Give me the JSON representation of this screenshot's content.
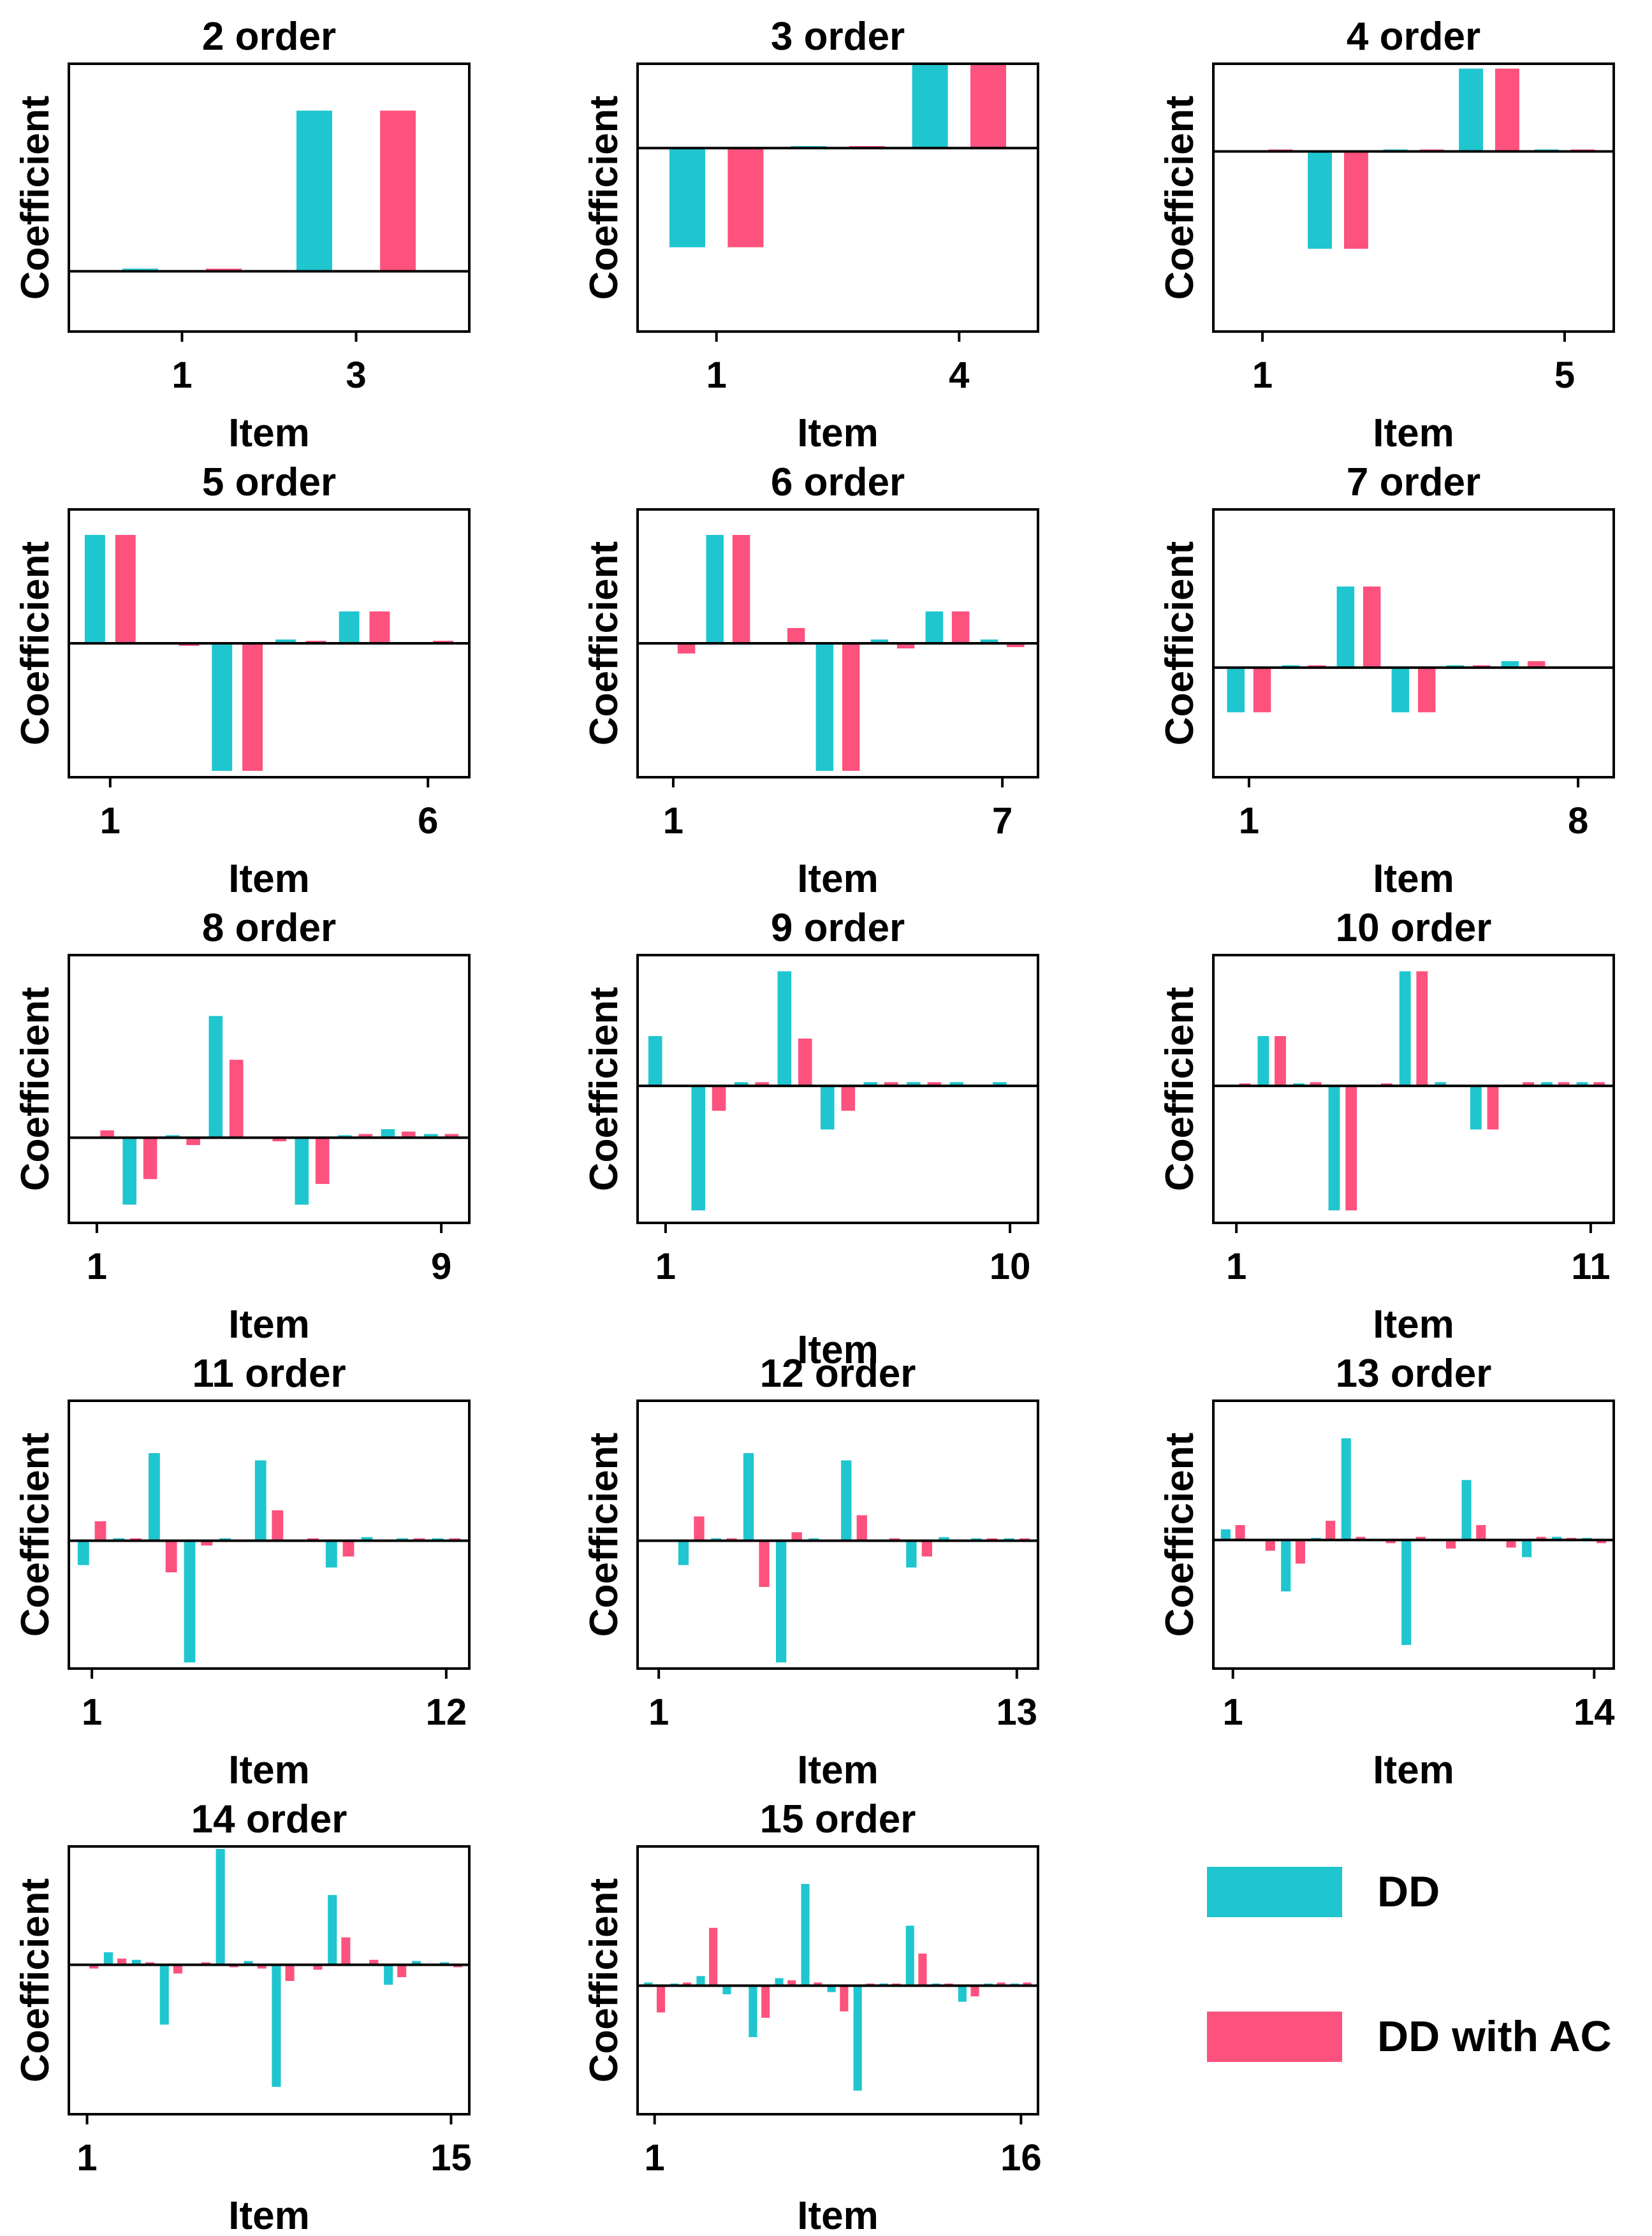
{
  "colors": {
    "dd": "#1fc6cf",
    "ac": "#fd527e",
    "axis": "#000000"
  },
  "legend": {
    "dd_label": "DD",
    "ac_label": "DD with AC"
  },
  "chart_data": [
    {
      "type": "bar",
      "title": "2 order",
      "xlabel": "Item",
      "ylabel": "Coefficient",
      "x_ticks": [
        "1",
        "3"
      ],
      "ylim": [
        -0.45,
        1.55
      ],
      "series": [
        {
          "name": "DD",
          "values": [
            0.02,
            1.2
          ]
        },
        {
          "name": "DD with AC",
          "values": [
            0.02,
            1.2
          ]
        }
      ]
    },
    {
      "type": "bar",
      "title": "3 order",
      "xlabel": "Item",
      "ylabel": "Coefficient",
      "x_ticks": [
        "1",
        "4"
      ],
      "ylim": [
        -1.85,
        0.85
      ],
      "series": [
        {
          "name": "DD",
          "values": [
            -1.0,
            0.02,
            0.85
          ]
        },
        {
          "name": "DD with AC",
          "values": [
            -1.0,
            0.02,
            0.85
          ]
        }
      ]
    },
    {
      "type": "bar",
      "title": "4 order",
      "xlabel": "Item",
      "ylabel": "Coefficient",
      "x_ticks": [
        "1",
        "5"
      ],
      "ylim": [
        -1.85,
        0.9
      ],
      "series": [
        {
          "name": "DD",
          "values": [
            0,
            -1.0,
            0.02,
            0.85,
            0.02
          ]
        },
        {
          "name": "DD with AC",
          "values": [
            0.02,
            -1.0,
            0.02,
            0.85,
            0.02
          ]
        }
      ]
    },
    {
      "type": "bar",
      "title": "5 order",
      "xlabel": "Item",
      "ylabel": "Coefficient",
      "x_ticks": [
        "1",
        "6"
      ],
      "ylim": [
        -1.05,
        1.05
      ],
      "series": [
        {
          "name": "DD",
          "values": [
            0.85,
            0,
            -1.0,
            0.03,
            0.25,
            0
          ]
        },
        {
          "name": "DD with AC",
          "values": [
            0.85,
            -0.02,
            -1.0,
            0.02,
            0.25,
            0.02
          ]
        }
      ]
    },
    {
      "type": "bar",
      "title": "6 order",
      "xlabel": "Item",
      "ylabel": "Coefficient",
      "x_ticks": [
        "1",
        "7"
      ],
      "ylim": [
        -1.05,
        1.05
      ],
      "series": [
        {
          "name": "DD",
          "values": [
            0,
            0.85,
            0,
            -1.0,
            0.03,
            0.25,
            0.03
          ]
        },
        {
          "name": "DD with AC",
          "values": [
            -0.08,
            0.85,
            0.12,
            -1.0,
            -0.04,
            0.25,
            -0.03
          ]
        }
      ]
    },
    {
      "type": "bar",
      "title": "7 order",
      "xlabel": "Item",
      "ylabel": "Coefficient",
      "x_ticks": [
        "1",
        "8"
      ],
      "ylim": [
        -1.35,
        1.95
      ],
      "series": [
        {
          "name": "DD",
          "values": [
            -0.55,
            0.03,
            1.0,
            -0.55,
            0.03,
            0.08,
            0
          ]
        },
        {
          "name": "DD with AC",
          "values": [
            -0.55,
            0.03,
            1.0,
            -0.55,
            0.03,
            0.08,
            0
          ]
        }
      ]
    },
    {
      "type": "bar",
      "title": "8 order",
      "xlabel": "Item",
      "ylabel": "Coefficient",
      "x_ticks": [
        "1",
        "9"
      ],
      "ylim": [
        -0.7,
        1.5
      ],
      "series": [
        {
          "name": "DD",
          "values": [
            0,
            -0.55,
            0.02,
            1.0,
            0,
            -0.55,
            0.02,
            0.07,
            0.03
          ]
        },
        {
          "name": "DD with AC",
          "values": [
            0.06,
            -0.34,
            -0.06,
            0.64,
            -0.03,
            -0.38,
            0.03,
            0.05,
            0.03
          ]
        }
      ]
    },
    {
      "type": "bar",
      "title": "9 order",
      "xlabel": "Item",
      "ylabel": "Coefficient",
      "x_ticks": [
        "1",
        "10"
      ],
      "ylim": [
        -1.1,
        1.05
      ],
      "series": [
        {
          "name": "DD",
          "values": [
            0.4,
            -1.0,
            0.03,
            0.92,
            -0.35,
            0.03,
            0.03,
            0.03,
            0.03
          ]
        },
        {
          "name": "DD with AC",
          "values": [
            0,
            -0.2,
            0.03,
            0.38,
            -0.2,
            0.03,
            0.03,
            0,
            0
          ]
        }
      ]
    },
    {
      "type": "bar",
      "title": "10 order",
      "xlabel": "Item",
      "ylabel": "Coefficient",
      "x_ticks": [
        "1",
        "11"
      ],
      "ylim": [
        -1.1,
        1.05
      ],
      "series": [
        {
          "name": "DD",
          "values": [
            0,
            0.4,
            0.02,
            -1.0,
            0,
            0.92,
            0.03,
            -0.35,
            0,
            0.03,
            0.03
          ]
        },
        {
          "name": "DD with AC",
          "values": [
            0.02,
            0.4,
            0.03,
            -1.0,
            0.02,
            0.92,
            0,
            -0.35,
            0.03,
            0.03,
            0.03
          ]
        }
      ]
    },
    {
      "type": "bar",
      "title": "11 order",
      "xlabel": "Item",
      "ylabel": "Coefficient",
      "x_ticks": [
        "1",
        "12"
      ],
      "ylim": [
        -1.05,
        1.15
      ],
      "series": [
        {
          "name": "DD",
          "values": [
            -0.2,
            0.02,
            0.72,
            -1.0,
            0.02,
            0.66,
            0,
            -0.22,
            0.03,
            0.02,
            0.02
          ]
        },
        {
          "name": "DD with AC",
          "values": [
            0.16,
            0.02,
            -0.26,
            -0.04,
            0,
            0.25,
            0.02,
            -0.13,
            0,
            0.02,
            0.02
          ]
        }
      ]
    },
    {
      "type": "bar",
      "title": "12 order",
      "xlabel": "Item",
      "ylabel": "Coefficient",
      "x_ticks": [
        "1",
        "13"
      ],
      "ylim": [
        -1.05,
        1.15
      ],
      "series": [
        {
          "name": "DD",
          "values": [
            0,
            -0.2,
            0.02,
            0.72,
            -1.0,
            0.02,
            0.66,
            0,
            -0.22,
            0.03,
            0.02,
            0.02
          ]
        },
        {
          "name": "DD with AC",
          "values": [
            0,
            0.2,
            0.02,
            -0.38,
            0.07,
            0,
            0.21,
            0.02,
            -0.13,
            0,
            0.02,
            0.02
          ]
        }
      ]
    },
    {
      "type": "bar",
      "title": "13 order",
      "xlabel": "Item",
      "ylabel": "Coefficient",
      "x_ticks": [
        "1",
        "14"
      ],
      "ylim": [
        -1.2,
        1.3
      ],
      "series": [
        {
          "name": "DD",
          "values": [
            0.1,
            0,
            -0.48,
            0.02,
            0.95,
            0,
            -0.98,
            0,
            0.56,
            0,
            -0.16,
            0.03,
            0.02
          ]
        },
        {
          "name": "DD with AC",
          "values": [
            0.14,
            -0.1,
            -0.22,
            0.18,
            0.03,
            -0.03,
            0.03,
            -0.08,
            0.14,
            -0.07,
            0.03,
            0.02,
            -0.03
          ]
        }
      ]
    },
    {
      "type": "bar",
      "title": "14 order",
      "xlabel": "Item",
      "ylabel": "Coefficient",
      "x_ticks": [
        "1",
        "15"
      ],
      "ylim": [
        -1.2,
        0.95
      ],
      "series": [
        {
          "name": "DD",
          "values": [
            0,
            0.1,
            0.04,
            -0.48,
            0,
            0.93,
            0.03,
            -0.98,
            0,
            0.56,
            0,
            -0.16,
            0.03,
            0.02
          ]
        },
        {
          "name": "DD with AC",
          "values": [
            -0.03,
            0.05,
            0.02,
            -0.07,
            0.02,
            -0.02,
            -0.03,
            -0.13,
            -0.04,
            0.22,
            0.04,
            -0.1,
            0,
            -0.02
          ]
        }
      ]
    },
    {
      "type": "bar",
      "title": "15 order",
      "xlabel": "Item",
      "ylabel": "Coefficient",
      "x_ticks": [
        "1",
        "16"
      ],
      "ylim": [
        -1.2,
        1.3
      ],
      "series": [
        {
          "name": "DD",
          "values": [
            0.03,
            0.02,
            0.09,
            -0.08,
            -0.48,
            0.07,
            0.95,
            -0.06,
            -0.98,
            0.02,
            0.56,
            0.02,
            -0.15,
            0.02,
            0.02
          ]
        },
        {
          "name": "DD with AC",
          "values": [
            -0.25,
            0.03,
            0.54,
            0.01,
            -0.3,
            0.05,
            0.03,
            -0.24,
            0.02,
            0.02,
            0.3,
            0.02,
            -0.1,
            0.03,
            0.03
          ]
        }
      ]
    }
  ]
}
